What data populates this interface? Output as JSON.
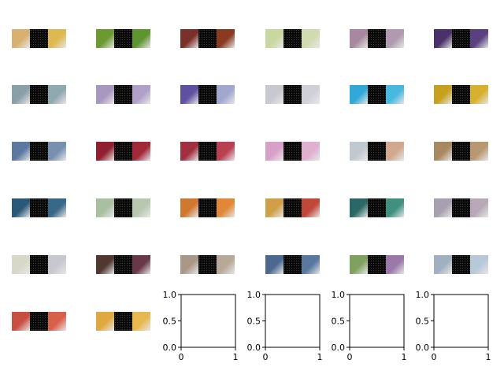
{
  "chart_data": {
    "type": "image-grid",
    "grid": {
      "rows": 6,
      "cols": 6
    },
    "image_count": 32,
    "images": [
      {
        "label": "",
        "left_color": "#d8b070",
        "right_color": "#e0b850"
      },
      {
        "label": "",
        "left_color": "#6a9a30",
        "right_color": "#5f9530"
      },
      {
        "label": "",
        "left_color": "#7a3028",
        "right_color": "#8a3a20"
      },
      {
        "label": "",
        "left_color": "#c8d8a0",
        "right_color": "#d0dcb0"
      },
      {
        "label": "",
        "left_color": "#a888a0",
        "right_color": "#b09ab0"
      },
      {
        "label": "",
        "left_color": "#4a3068",
        "right_color": "#5a4080"
      },
      {
        "label": "",
        "left_color": "#8aa0a8",
        "right_color": "#90a8b0"
      },
      {
        "label": "",
        "left_color": "#a898c0",
        "right_color": "#b0a0c8"
      },
      {
        "label": "",
        "left_color": "#6050a0",
        "right_color": "#a0a8d0"
      },
      {
        "label": "",
        "left_color": "#c8c8d0",
        "right_color": "#d0d0d8"
      },
      {
        "label": "",
        "left_color": "#30a8d8",
        "right_color": "#48b8e0"
      },
      {
        "label": "",
        "left_color": "#c8a020",
        "right_color": "#d8b030"
      },
      {
        "label": "",
        "left_color": "#5a78a0",
        "right_color": "#7890b0"
      },
      {
        "label": "",
        "left_color": "#902030",
        "right_color": "#a02838"
      },
      {
        "label": "",
        "left_color": "#a03040",
        "right_color": "#b84050"
      },
      {
        "label": "",
        "left_color": "#d8a0c8",
        "right_color": "#e0b0d0"
      },
      {
        "label": "",
        "left_color": "#c0c8d0",
        "right_color": "#d0a890"
      },
      {
        "label": "",
        "left_color": "#a88860",
        "right_color": "#b89870"
      },
      {
        "label": "",
        "left_color": "#2a5878",
        "right_color": "#386888"
      },
      {
        "label": "",
        "left_color": "#a8c0a0",
        "right_color": "#b8c8b0"
      },
      {
        "label": "",
        "left_color": "#d07830",
        "right_color": "#e08838"
      },
      {
        "label": "",
        "left_color": "#d0a048",
        "right_color": "#c04838"
      },
      {
        "label": "",
        "left_color": "#2a6868",
        "right_color": "#409080"
      },
      {
        "label": "",
        "left_color": "#a8a0b0",
        "right_color": "#b8a8b8"
      },
      {
        "label": "",
        "left_color": "#d8d8c8",
        "right_color": "#c8c8d0"
      },
      {
        "label": "",
        "left_color": "#503830",
        "right_color": "#683848"
      },
      {
        "label": "",
        "left_color": "#a89888",
        "right_color": "#b8a898"
      },
      {
        "label": "",
        "left_color": "#4a6890",
        "right_color": "#5878a0"
      },
      {
        "label": "",
        "left_color": "#80a060",
        "right_color": "#9a78a8"
      },
      {
        "label": "",
        "left_color": "#a0b0c0",
        "right_color": "#b8c8d8"
      },
      {
        "label": "",
        "left_color": "#c85040",
        "right_color": "#d86048"
      },
      {
        "label": "",
        "left_color": "#e0a840",
        "right_color": "#e8b850"
      }
    ],
    "empty_axes": [
      {
        "xlim": [
          0,
          1
        ],
        "ylim": [
          0,
          1
        ],
        "x_ticks": [
          "0",
          "1"
        ],
        "y_ticks": [
          "0.0",
          "0.5",
          "1.0"
        ]
      },
      {
        "xlim": [
          0,
          1
        ],
        "ylim": [
          0,
          1
        ],
        "x_ticks": [
          "0",
          "1"
        ],
        "y_ticks": [
          "0.0",
          "0.5",
          "1.0"
        ]
      },
      {
        "xlim": [
          0,
          1
        ],
        "ylim": [
          0,
          1
        ],
        "x_ticks": [
          "0",
          "1"
        ],
        "y_ticks": [
          "0.0",
          "0.5",
          "1.0"
        ]
      },
      {
        "xlim": [
          0,
          1
        ],
        "ylim": [
          0,
          1
        ],
        "x_ticks": [
          "0",
          "1"
        ],
        "y_ticks": [
          "0.0",
          "0.5",
          "1.0"
        ]
      }
    ]
  }
}
